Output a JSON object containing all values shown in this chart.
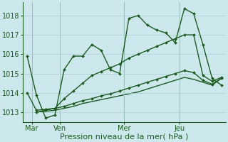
{
  "xlabel": "Pression niveau de la mer( hPa )",
  "background_color": "#cce8ec",
  "grid_color": "#aacdd4",
  "line_color": "#1a5c1a",
  "ylim": [
    1012.5,
    1018.7
  ],
  "xlim": [
    -0.5,
    21.5
  ],
  "day_labels": [
    "Mar",
    "Ven",
    "Mer",
    "Jeu"
  ],
  "day_positions": [
    0.5,
    3.5,
    10.5,
    16.5
  ],
  "series1_x": [
    0,
    1,
    2,
    3,
    4,
    5,
    6,
    7,
    8,
    9,
    10,
    11,
    12,
    13,
    14,
    15,
    16,
    17,
    18,
    19,
    20,
    21
  ],
  "series1": [
    1015.9,
    1013.9,
    1012.7,
    1012.85,
    1015.2,
    1015.9,
    1015.9,
    1016.5,
    1016.2,
    1015.2,
    1015.0,
    1017.85,
    1018.0,
    1017.5,
    1017.25,
    1017.1,
    1016.6,
    1018.35,
    1018.1,
    1016.5,
    1014.75,
    1014.4
  ],
  "series2_x": [
    0,
    1,
    2,
    3,
    4,
    5,
    6,
    7,
    8,
    9,
    10,
    11,
    12,
    13,
    14,
    15,
    16,
    17,
    18,
    19,
    20,
    21
  ],
  "series2": [
    1014.0,
    1013.1,
    1013.15,
    1013.2,
    1013.7,
    1014.1,
    1014.5,
    1014.9,
    1015.1,
    1015.3,
    1015.5,
    1015.8,
    1016.0,
    1016.2,
    1016.4,
    1016.6,
    1016.8,
    1017.0,
    1017.0,
    1014.9,
    1014.6,
    1014.8
  ],
  "series3_x": [
    1,
    2,
    3,
    4,
    5,
    6,
    7,
    8,
    9,
    10,
    11,
    12,
    13,
    14,
    15,
    16,
    17,
    18,
    19,
    20,
    21
  ],
  "series3": [
    1013.0,
    1013.1,
    1013.2,
    1013.3,
    1013.45,
    1013.6,
    1013.7,
    1013.85,
    1013.95,
    1014.1,
    1014.25,
    1014.4,
    1014.55,
    1014.7,
    1014.85,
    1015.0,
    1015.15,
    1015.05,
    1014.65,
    1014.45,
    1014.75
  ],
  "series4_x": [
    1,
    2,
    3,
    4,
    5,
    6,
    7,
    8,
    9,
    10,
    11,
    12,
    13,
    14,
    15,
    16,
    17,
    18,
    19,
    20,
    21
  ],
  "series4": [
    1013.0,
    1013.05,
    1013.1,
    1013.2,
    1013.3,
    1013.45,
    1013.55,
    1013.65,
    1013.75,
    1013.85,
    1013.95,
    1014.05,
    1014.2,
    1014.35,
    1014.5,
    1014.65,
    1014.8,
    1014.7,
    1014.55,
    1014.4,
    1014.75
  ],
  "tick_yticks": [
    1013,
    1014,
    1015,
    1016,
    1017,
    1018
  ],
  "marker_size": 2.0,
  "line_width": 1.0,
  "font_size": 7
}
